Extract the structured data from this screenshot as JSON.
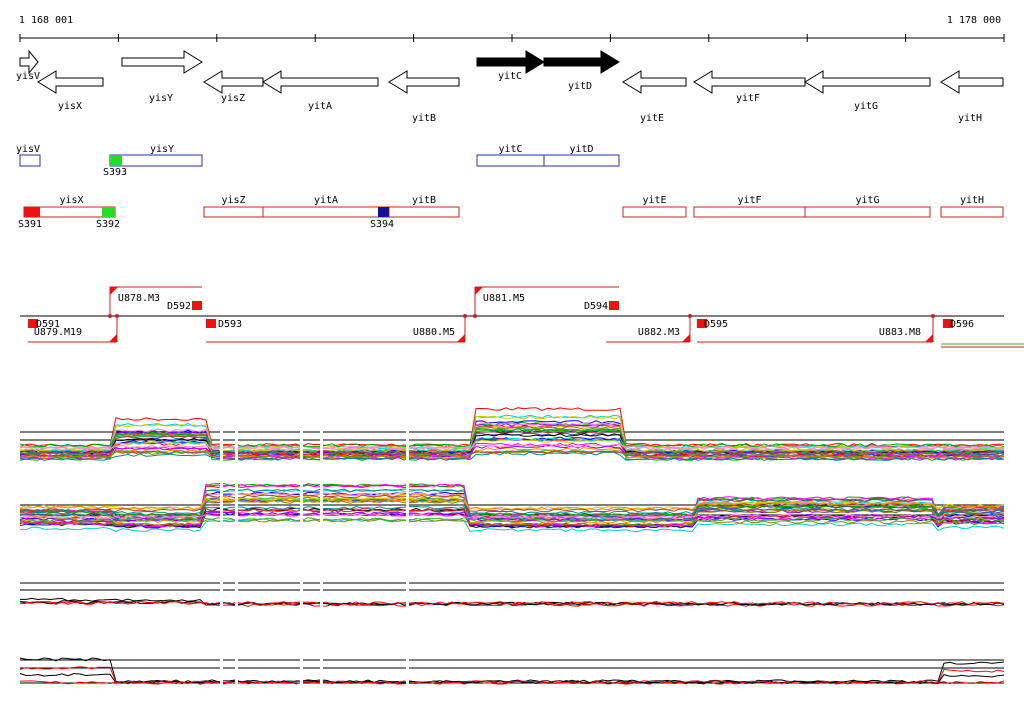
{
  "ruler": {
    "start": "1 168 001",
    "end": "1 178 000"
  },
  "genes": [
    "yisV",
    "yisX",
    "yisY",
    "yisZ",
    "yitA",
    "yitB",
    "yitC",
    "yitD",
    "yitE",
    "yitF",
    "yitG",
    "yitH"
  ],
  "gene_boxes": [
    "yisV",
    "yisY",
    "yitC",
    "yitD"
  ],
  "blue_row_markers": [
    "S393"
  ],
  "transcript_boxes": [
    "yisX",
    "yisZ",
    "yitA",
    "yitB",
    "yitE",
    "yitF",
    "yitG",
    "yitH"
  ],
  "red_row_markers": [
    "S391",
    "S392",
    "S394"
  ],
  "regulators": [
    "D591",
    "U879.M19",
    "U878.M3",
    "D592",
    "D593",
    "U880.M5",
    "U881.M5",
    "D594",
    "U882.M3",
    "D595",
    "U883.M8",
    "D596"
  ]
}
